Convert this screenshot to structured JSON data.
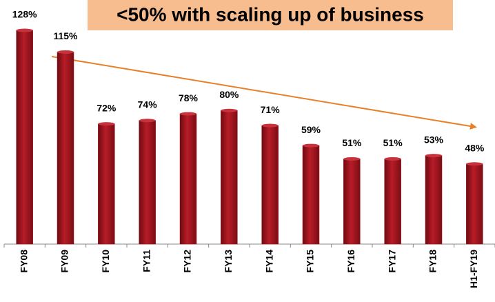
{
  "chart_data": {
    "type": "bar",
    "title": "<50% with scaling up of business",
    "categories": [
      "FY08",
      "FY09",
      "FY10",
      "FY11",
      "FY12",
      "FY13",
      "FY14",
      "FY15",
      "FY16",
      "FY17",
      "FY18",
      "H1-FY19"
    ],
    "values": [
      128,
      115,
      72,
      74,
      78,
      80,
      71,
      59,
      51,
      51,
      53,
      48
    ],
    "value_labels": [
      "128%",
      "115%",
      "72%",
      "74%",
      "78%",
      "80%",
      "71%",
      "59%",
      "51%",
      "51%",
      "53%",
      "48%"
    ],
    "color": "#a3151f"
  }
}
